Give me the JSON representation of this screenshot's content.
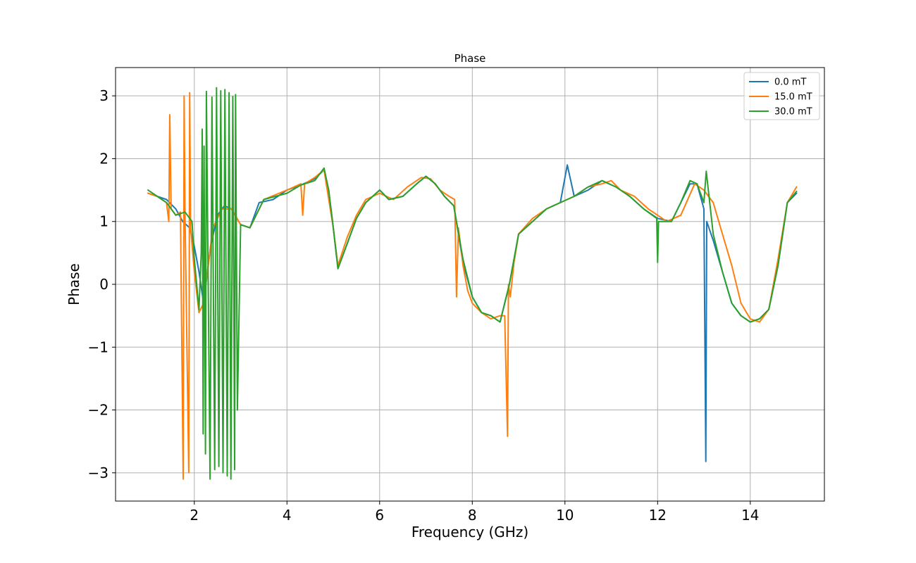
{
  "chart_data": {
    "type": "line",
    "title": "Phase",
    "xlabel": "Frequency (GHz)",
    "ylabel": "Phase",
    "xlim": [
      0.3,
      15.6
    ],
    "ylim": [
      -3.45,
      3.45
    ],
    "xticks": [
      2,
      4,
      6,
      8,
      10,
      12,
      14
    ],
    "xtick_labels": [
      "2",
      "4",
      "6",
      "8",
      "10",
      "12",
      "14"
    ],
    "yticks": [
      -3,
      -2,
      -1,
      0,
      1,
      2,
      3
    ],
    "ytick_labels": [
      "−3",
      "−2",
      "−1",
      "0",
      "1",
      "2",
      "3"
    ],
    "grid": true,
    "legend_position": "top-right",
    "series": [
      {
        "name": "0.0 mT",
        "color": "#1f77b4",
        "x": [
          1.0,
          1.2,
          1.4,
          1.6,
          1.75,
          1.9,
          2.0,
          2.1,
          2.2,
          2.35,
          2.5,
          2.65,
          2.8,
          3.0,
          3.2,
          3.4,
          3.7,
          4.0,
          4.3,
          4.6,
          4.8,
          4.9,
          5.0,
          5.1,
          5.3,
          5.5,
          5.7,
          6.0,
          6.2,
          6.5,
          6.8,
          7.0,
          7.2,
          7.4,
          7.6,
          7.8,
          8.0,
          8.2,
          8.4,
          8.6,
          8.7,
          8.8,
          8.9,
          9.0,
          9.3,
          9.6,
          9.9,
          10.05,
          10.2,
          10.5,
          10.8,
          11.1,
          11.4,
          11.7,
          12.0,
          12.3,
          12.5,
          12.7,
          12.85,
          13.0,
          13.04,
          13.06,
          13.2,
          13.4,
          13.6,
          13.8,
          14.0,
          14.2,
          14.4,
          14.6,
          14.8,
          15.0
        ],
        "y": [
          1.45,
          1.4,
          1.35,
          1.2,
          1.0,
          0.9,
          0.6,
          0.2,
          -0.3,
          0.6,
          1.1,
          1.25,
          1.2,
          0.95,
          0.9,
          1.3,
          1.35,
          1.5,
          1.58,
          1.68,
          1.82,
          1.5,
          0.9,
          0.25,
          0.65,
          1.05,
          1.3,
          1.5,
          1.35,
          1.4,
          1.6,
          1.72,
          1.6,
          1.4,
          1.25,
          0.35,
          -0.2,
          -0.45,
          -0.5,
          -0.6,
          -0.3,
          0.0,
          0.4,
          0.8,
          1.0,
          1.2,
          1.3,
          1.9,
          1.4,
          1.5,
          1.65,
          1.55,
          1.4,
          1.2,
          1.05,
          1.0,
          1.3,
          1.6,
          1.6,
          1.2,
          -2.82,
          1.0,
          0.7,
          0.2,
          -0.3,
          -0.5,
          -0.6,
          -0.55,
          -0.4,
          0.3,
          1.3,
          1.45
        ]
      },
      {
        "name": "15.0 mT",
        "color": "#ff7f0e",
        "x": [
          1.0,
          1.2,
          1.4,
          1.45,
          1.47,
          1.5,
          1.6,
          1.7,
          1.76,
          1.78,
          1.8,
          1.88,
          1.9,
          1.92,
          2.0,
          2.1,
          2.2,
          2.3,
          2.4,
          2.6,
          2.8,
          3.0,
          3.2,
          3.5,
          4.0,
          4.3,
          4.34,
          4.38,
          4.6,
          4.8,
          5.0,
          5.1,
          5.3,
          5.5,
          5.7,
          6.0,
          6.3,
          6.6,
          6.9,
          7.1,
          7.3,
          7.5,
          7.62,
          7.66,
          7.7,
          7.8,
          7.9,
          8.0,
          8.2,
          8.4,
          8.6,
          8.7,
          8.76,
          8.78,
          8.82,
          8.9,
          9.0,
          9.3,
          9.6,
          9.9,
          10.2,
          10.5,
          10.8,
          11.0,
          11.2,
          11.5,
          11.8,
          12.0,
          12.2,
          12.5,
          12.8,
          13.0,
          13.2,
          13.4,
          13.6,
          13.8,
          14.0,
          14.2,
          14.4,
          14.6,
          14.8,
          15.0
        ],
        "y": [
          1.45,
          1.4,
          1.3,
          1.0,
          2.7,
          1.2,
          1.1,
          1.15,
          -3.1,
          3.0,
          1.1,
          -3.0,
          3.05,
          0.9,
          0.2,
          -0.45,
          -0.3,
          0.3,
          0.9,
          1.2,
          1.2,
          0.95,
          0.9,
          1.35,
          1.5,
          1.6,
          1.1,
          1.6,
          1.7,
          1.82,
          0.9,
          0.3,
          0.75,
          1.1,
          1.35,
          1.45,
          1.35,
          1.55,
          1.7,
          1.68,
          1.5,
          1.4,
          1.35,
          -0.2,
          0.9,
          0.3,
          -0.1,
          -0.3,
          -0.45,
          -0.55,
          -0.5,
          -0.5,
          -2.42,
          0.0,
          -0.2,
          0.35,
          0.8,
          1.05,
          1.2,
          1.3,
          1.4,
          1.55,
          1.6,
          1.65,
          1.5,
          1.4,
          1.2,
          1.1,
          1.0,
          1.1,
          1.6,
          1.5,
          1.3,
          0.8,
          0.3,
          -0.3,
          -0.55,
          -0.6,
          -0.4,
          0.4,
          1.3,
          1.55
        ]
      },
      {
        "name": "30.0 mT",
        "color": "#2ca02c",
        "x": [
          1.0,
          1.2,
          1.4,
          1.6,
          1.8,
          1.95,
          2.0,
          2.1,
          2.15,
          2.17,
          2.19,
          2.21,
          2.24,
          2.26,
          2.34,
          2.38,
          2.44,
          2.48,
          2.53,
          2.57,
          2.62,
          2.66,
          2.71,
          2.75,
          2.79,
          2.83,
          2.87,
          2.89,
          2.93,
          3.0,
          3.2,
          3.5,
          4.0,
          4.3,
          4.6,
          4.8,
          4.9,
          5.0,
          5.1,
          5.3,
          5.5,
          5.7,
          6.0,
          6.2,
          6.5,
          6.8,
          7.0,
          7.2,
          7.4,
          7.6,
          7.8,
          8.0,
          8.2,
          8.4,
          8.6,
          8.7,
          8.8,
          8.9,
          9.0,
          9.3,
          9.6,
          9.9,
          10.2,
          10.5,
          10.8,
          11.1,
          11.4,
          11.7,
          11.98,
          12.0,
          12.02,
          12.3,
          12.5,
          12.7,
          12.85,
          13.0,
          13.05,
          13.2,
          13.4,
          13.6,
          13.8,
          14.0,
          14.2,
          14.4,
          14.6,
          14.8,
          15.0
        ],
        "y": [
          1.5,
          1.4,
          1.3,
          1.1,
          1.15,
          1.0,
          0.4,
          -0.4,
          0.5,
          2.47,
          -2.38,
          2.2,
          -2.7,
          3.07,
          -3.1,
          2.98,
          -2.95,
          3.13,
          -2.9,
          3.08,
          -3.0,
          3.1,
          -3.05,
          3.05,
          -3.1,
          2.99,
          -2.95,
          3.02,
          -2.0,
          0.95,
          0.9,
          1.35,
          1.45,
          1.58,
          1.65,
          1.85,
          1.5,
          0.9,
          0.25,
          0.65,
          1.05,
          1.3,
          1.5,
          1.35,
          1.4,
          1.6,
          1.72,
          1.6,
          1.4,
          1.25,
          0.4,
          -0.2,
          -0.45,
          -0.5,
          -0.6,
          -0.3,
          0.0,
          0.4,
          0.8,
          1.0,
          1.2,
          1.3,
          1.4,
          1.55,
          1.65,
          1.55,
          1.4,
          1.2,
          1.05,
          0.35,
          1.0,
          1.0,
          1.3,
          1.65,
          1.6,
          1.3,
          1.8,
          0.8,
          0.2,
          -0.3,
          -0.5,
          -0.6,
          -0.55,
          -0.4,
          0.3,
          1.3,
          1.48
        ]
      }
    ]
  }
}
